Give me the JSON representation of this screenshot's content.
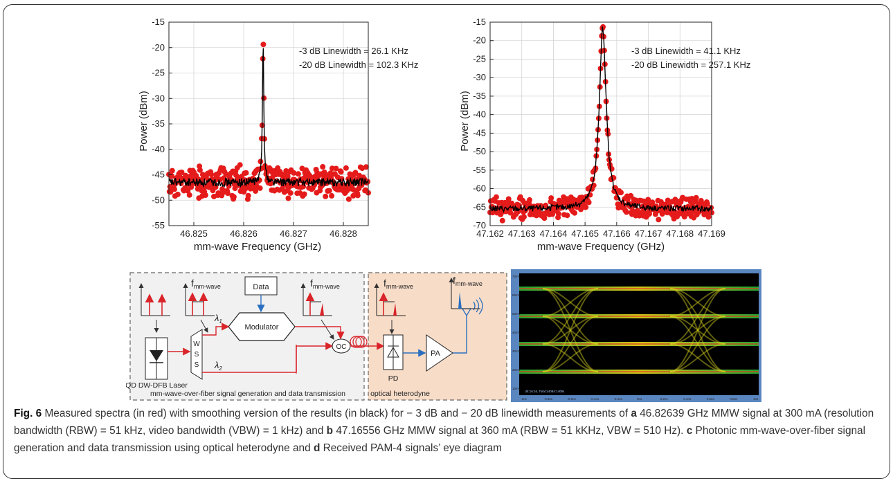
{
  "chart_data": [
    {
      "type": "scatter",
      "panel": "a",
      "xlabel": "mm-wave Frequency (GHz)",
      "ylabel": "Power (dBm)",
      "xlim": [
        46.8245,
        46.8285
      ],
      "ylim": [
        -55,
        -15
      ],
      "xticks": [
        "46.825",
        "46.826",
        "46.827",
        "46.828"
      ],
      "yticks": [
        "-15",
        "-20",
        "-25",
        "-30",
        "-35",
        "-40",
        "-45",
        "-50",
        "-55"
      ],
      "grid": true,
      "center_frequency": 46.82639,
      "peak_power": -17.5,
      "noise_floor": -46.5,
      "series": [
        {
          "name": "Measured",
          "color": "#e51b1b",
          "marker": "circle"
        },
        {
          "name": "Smoothed",
          "color": "#000000",
          "marker": "line"
        }
      ],
      "annotations": [
        "-3 dB Linewidth = 26.1 KHz",
        "-20 dB Linewidth = 102.3 KHz"
      ]
    },
    {
      "type": "scatter",
      "panel": "b",
      "xlabel": "mm-wave Frequency (GHz)",
      "ylabel": "Power (dBm)",
      "xlim": [
        47.162,
        47.169
      ],
      "ylim": [
        -70,
        -15
      ],
      "xticks": [
        "47.162",
        "47.163",
        "47.164",
        "47.165",
        "47.166",
        "47.167",
        "47.168",
        "47.169"
      ],
      "yticks": [
        "-15",
        "-20",
        "-25",
        "-30",
        "-35",
        "-40",
        "-45",
        "-50",
        "-55",
        "-60",
        "-65",
        "-70"
      ],
      "grid": true,
      "center_frequency": 47.16556,
      "peak_power": -16.5,
      "noise_floor": -65.5,
      "series": [
        {
          "name": "Measured",
          "color": "#e51b1b",
          "marker": "circle"
        },
        {
          "name": "Smoothed",
          "color": "#000000",
          "marker": "line"
        }
      ],
      "annotations": [
        "-3 dB Linewidth = 41.1 KHz",
        "-20 dB Linewidth = 257.1 KHz"
      ]
    }
  ],
  "diagram": {
    "fmm": "f",
    "fmm_sub": "mm-wave",
    "data_label": "Data",
    "modulator_label": "Modulator",
    "wss_letters": [
      "W",
      "S",
      "S"
    ],
    "lambda": "λ",
    "lambda1_sub": "1",
    "lambda2_sub": "2",
    "oc_label": "OC",
    "pd_label": "PD",
    "pa_label": "PA",
    "laser_label": "QD DW-DFB Laser",
    "left_box_label": "mm-wave-over-fiber signal generation and data transmission",
    "right_box_label": "optical heterodyne"
  },
  "eye_diagram": {
    "y_ticks": [
      "70mV",
      "60mV",
      "50mV",
      "40mV",
      "30mV",
      "20mV",
      "10mV"
    ],
    "x_ticks": [
      "-1ns",
      "-0.8ns",
      "-0.6ns",
      "-0.4ns",
      "-0.2ns",
      "0ns",
      "0.2ns",
      "0.4ns",
      "0.6ns",
      "0.8ns",
      "1ns"
    ],
    "status": "Ult:16:16, Total:14084:14084"
  },
  "caption": {
    "label": "Fig. 6",
    "p1": " Measured spectra (in red) with smoothing version of the results (in black) for − 3 dB and − 20 dB linewidth measurements of ",
    "a": "a",
    "p2": " 46.82639 GHz MMW signal at 300 mA (resolution bandwidth (RBW) = 51 kHz, video bandwidth (VBW) = 1 kHz) and ",
    "b": "b",
    "p3": " 47.16556 GHz MMW signal at 360 mA (RBW = 51 kKHz, VBW = 510 Hz). ",
    "c": "c",
    "p4": " Photonic mm-wave-over-fiber signal generation and data transmission using optical heterodyne and ",
    "d": "d",
    "p5": " Received PAM-4 signals’ eye diagram"
  }
}
